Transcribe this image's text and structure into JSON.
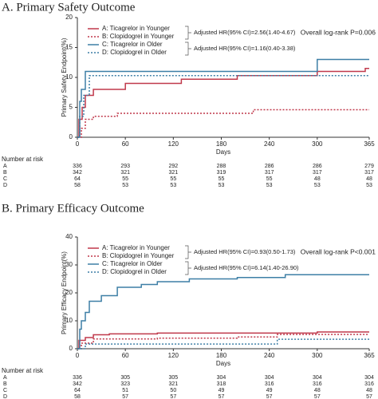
{
  "chart_data": [
    {
      "type": "line",
      "title": "A. Primary Safety Outcome",
      "ylabel": "Primary Safety Endpoint(%)",
      "xlabel": "Days",
      "xlim": [
        0,
        365
      ],
      "xticks": [
        0,
        60,
        120,
        180,
        240,
        300,
        365
      ],
      "ylim": [
        0,
        20
      ],
      "yticks": [
        0,
        5,
        10,
        15,
        20
      ],
      "series": [
        {
          "name": "A: Ticagrelor in Younger",
          "color": "#c0394b",
          "linestyle": "solid",
          "x": [
            0,
            2,
            2,
            6,
            6,
            10,
            10,
            20,
            20,
            60,
            60,
            130,
            130,
            200,
            200,
            300,
            300,
            360,
            360,
            365
          ],
          "values": [
            0,
            0,
            3,
            3,
            5,
            5,
            7,
            7,
            8,
            8,
            9,
            9,
            9.7,
            9.7,
            10.3,
            10.3,
            11,
            11,
            11.5,
            11.5
          ]
        },
        {
          "name": "B: Clopidogrel in Younger",
          "color": "#c0394b",
          "linestyle": "dotted",
          "x": [
            0,
            5,
            5,
            10,
            10,
            20,
            20,
            50,
            50,
            220,
            220,
            365
          ],
          "values": [
            0,
            0,
            1.5,
            1.5,
            3,
            3,
            3.5,
            3.5,
            4,
            4,
            4.6,
            4.6
          ]
        },
        {
          "name": "C: Ticagrelor in Older",
          "color": "#3d7fa6",
          "linestyle": "solid",
          "x": [
            0,
            3,
            3,
            5,
            5,
            10,
            10,
            300,
            300,
            365
          ],
          "values": [
            0,
            0,
            6,
            6,
            8,
            8,
            11,
            11,
            13,
            13
          ]
        },
        {
          "name": "D: Clopidogrel in Older",
          "color": "#3d7fa6",
          "linestyle": "dotted",
          "x": [
            0,
            3,
            3,
            8,
            8,
            15,
            15,
            365
          ],
          "values": [
            0,
            0,
            3.5,
            3.5,
            7,
            7,
            10.3,
            10.3
          ]
        }
      ],
      "annotations": [
        "Adjusted HR(95% CI)=2.56(1.40-4.67)",
        "Adjusted HR(95% CI)=1.16(0.40-3.38)",
        "Overall log-rank P=0.006"
      ],
      "risk_table": {
        "label": "Number at risk",
        "rows": [
          {
            "name": "A",
            "values": [
              336,
              293,
              292,
              288,
              286,
              286,
              279
            ]
          },
          {
            "name": "B",
            "values": [
              342,
              321,
              321,
              319,
              317,
              317,
              317
            ]
          },
          {
            "name": "C",
            "values": [
              64,
              55,
              55,
              55,
              55,
              48,
              48
            ]
          },
          {
            "name": "D",
            "values": [
              58,
              53,
              53,
              53,
              53,
              53,
              53
            ]
          }
        ]
      }
    },
    {
      "type": "line",
      "title": "B. Primary Efficacy Outcome",
      "ylabel": "Primary Efficacy Endpoint(%)",
      "xlabel": "Days",
      "xlim": [
        0,
        365
      ],
      "xticks": [
        0,
        60,
        120,
        180,
        240,
        300,
        365
      ],
      "ylim": [
        0,
        40
      ],
      "yticks": [
        0,
        10,
        20,
        30,
        40
      ],
      "series": [
        {
          "name": "A: Ticagrelor in Younger",
          "color": "#c0394b",
          "linestyle": "solid",
          "x": [
            0,
            2,
            2,
            10,
            10,
            20,
            20,
            40,
            40,
            100,
            100,
            300,
            300,
            365
          ],
          "values": [
            0,
            0,
            3,
            3,
            4,
            4,
            5,
            5,
            5.3,
            5.3,
            5.6,
            5.6,
            6,
            6
          ]
        },
        {
          "name": "B: Clopidogrel in Younger",
          "color": "#c0394b",
          "linestyle": "dotted",
          "x": [
            0,
            5,
            5,
            20,
            20,
            100,
            100,
            200,
            200,
            250,
            250,
            365
          ],
          "values": [
            0,
            0,
            2,
            2,
            3.5,
            3.5,
            3.8,
            3.8,
            4.2,
            4.2,
            5.1,
            5.1
          ]
        },
        {
          "name": "C: Ticagrelor in Older",
          "color": "#3d7fa6",
          "linestyle": "solid",
          "x": [
            0,
            3,
            3,
            5,
            5,
            10,
            10,
            15,
            15,
            30,
            30,
            50,
            50,
            80,
            80,
            100,
            100,
            140,
            140,
            200,
            200,
            260,
            260,
            365
          ],
          "values": [
            0,
            0,
            7,
            7,
            10,
            10,
            13,
            13,
            17,
            17,
            19,
            19,
            22,
            22,
            23,
            23,
            24,
            24,
            25,
            25,
            25.5,
            25.5,
            26.5,
            26.5
          ]
        },
        {
          "name": "D: Clopidogrel in Older",
          "color": "#3d7fa6",
          "linestyle": "dotted",
          "x": [
            0,
            10,
            10,
            250,
            250,
            365
          ],
          "values": [
            0,
            0,
            1.7,
            1.7,
            3.4,
            3.4
          ]
        }
      ],
      "annotations": [
        "Adjusted HR(95% CI)=0.93(0.50-1.73)",
        "Adjusted HR(95% CI)=6.14(1.40-26.90)",
        "Overall log-rank P<0.001"
      ],
      "risk_table": {
        "label": "Number at risk",
        "rows": [
          {
            "name": "A",
            "values": [
              336,
              305,
              305,
              304,
              304,
              304,
              304
            ]
          },
          {
            "name": "B",
            "values": [
              342,
              323,
              321,
              318,
              316,
              316,
              316
            ]
          },
          {
            "name": "C",
            "values": [
              64,
              51,
              50,
              49,
              49,
              48,
              48
            ]
          },
          {
            "name": "D",
            "values": [
              58,
              57,
              57,
              57,
              57,
              57,
              57
            ]
          }
        ]
      }
    }
  ]
}
